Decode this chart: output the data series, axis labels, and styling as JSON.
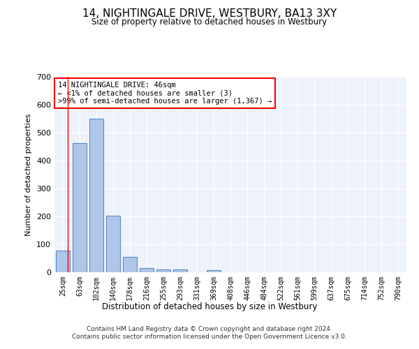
{
  "title": "14, NIGHTINGALE DRIVE, WESTBURY, BA13 3XY",
  "subtitle": "Size of property relative to detached houses in Westbury",
  "xlabel": "Distribution of detached houses by size in Westbury",
  "ylabel": "Number of detached properties",
  "bar_color": "#aec6e8",
  "bar_edge_color": "#5a8fc2",
  "categories": [
    "25sqm",
    "63sqm",
    "102sqm",
    "140sqm",
    "178sqm",
    "216sqm",
    "255sqm",
    "293sqm",
    "331sqm",
    "369sqm",
    "408sqm",
    "446sqm",
    "484sqm",
    "522sqm",
    "561sqm",
    "599sqm",
    "637sqm",
    "675sqm",
    "714sqm",
    "752sqm",
    "790sqm"
  ],
  "values": [
    78,
    462,
    549,
    203,
    55,
    14,
    9,
    9,
    0,
    8,
    0,
    0,
    0,
    0,
    0,
    0,
    0,
    0,
    0,
    0,
    0
  ],
  "ylim": [
    0,
    700
  ],
  "yticks": [
    0,
    100,
    200,
    300,
    400,
    500,
    600,
    700
  ],
  "annotation_text": "14 NIGHTINGALE DRIVE: 46sqm\n← <1% of detached houses are smaller (3)\n>99% of semi-detached houses are larger (1,367) →",
  "annotation_box_color": "#ffffff",
  "annotation_box_edge_color": "#ff0000",
  "footer_text": "Contains HM Land Registry data © Crown copyright and database right 2024.\nContains public sector information licensed under the Open Government Licence v3.0.",
  "background_color": "#eef2fb",
  "grid_color": "#ffffff",
  "fig_bg_color": "#ffffff",
  "red_line_x": 0.3
}
